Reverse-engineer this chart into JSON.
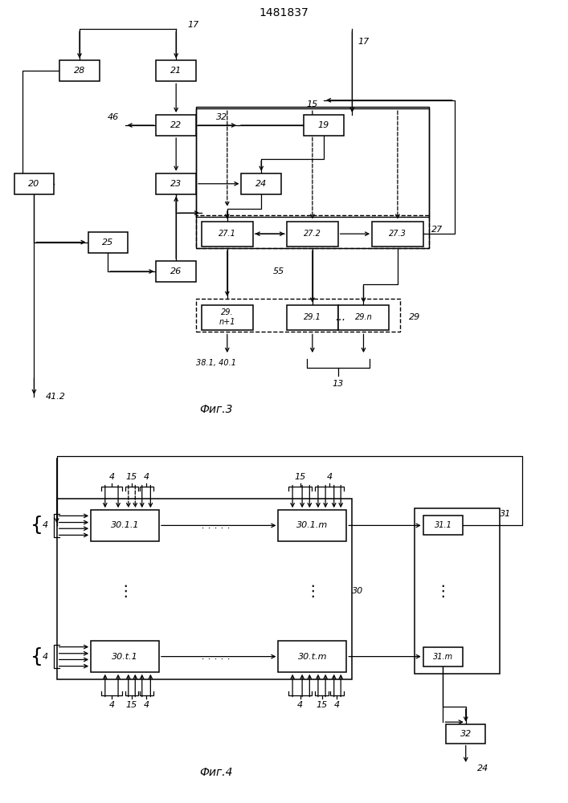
{
  "title": "1481837",
  "fig3_label": "Фиг.3",
  "fig4_label": "Фиг.4",
  "bg": "#ffffff"
}
